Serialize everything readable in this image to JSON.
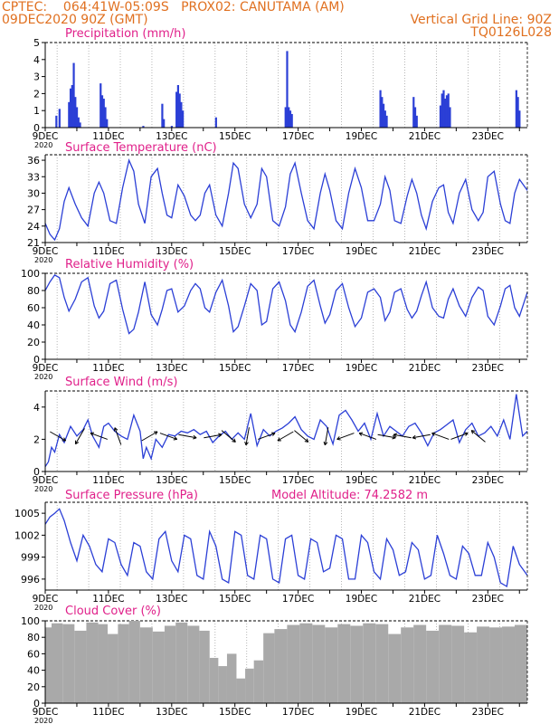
{
  "header": {
    "line1": "CPTEC:    064:41W-05:09S   PROX02: CANUTAMA (AM)",
    "line2": "09DEC2020 90Z (GMT)",
    "right1": "Vertical Grid Line: 90Z",
    "right2": "TQ0126L028"
  },
  "colors": {
    "header": "#e07020",
    "panel_title": "#e0208a",
    "series": "#2b3fd6",
    "cloud": "#a9a9a9",
    "grid": "#888888"
  },
  "x_tick_labels": [
    "9DEC",
    "11DEC",
    "13DEC",
    "15DEC",
    "17DEC",
    "19DEC",
    "21DEC",
    "23DEC"
  ],
  "x_year_label": "2020",
  "chart_data": [
    {
      "type": "bar",
      "title": "Precipitation (mm/h)",
      "ylim": [
        0,
        5
      ],
      "yticks": [
        0,
        1,
        2,
        3,
        4,
        5
      ],
      "xlim": [
        9.0,
        24.25
      ],
      "x": [
        9.35,
        9.45,
        9.75,
        9.8,
        9.85,
        9.9,
        9.95,
        10.0,
        10.05,
        10.1,
        10.75,
        10.8,
        10.85,
        10.9,
        10.95,
        12.1,
        12.7,
        12.75,
        13.0,
        13.15,
        13.2,
        13.25,
        13.3,
        13.35,
        14.4,
        16.6,
        16.65,
        16.7,
        16.75,
        16.8,
        19.6,
        19.65,
        19.7,
        19.75,
        19.8,
        20.65,
        20.7,
        20.75,
        21.5,
        21.55,
        21.6,
        21.65,
        21.7,
        21.75,
        21.8,
        23.9,
        23.95,
        24.0
      ],
      "values": [
        0.7,
        1.1,
        1.5,
        2.3,
        2.5,
        3.8,
        1.8,
        1.2,
        0.6,
        0.3,
        2.6,
        1.9,
        1.7,
        1.2,
        0.5,
        0.1,
        1.4,
        0.5,
        0.1,
        2.1,
        2.5,
        2.0,
        1.5,
        1.0,
        0.6,
        1.2,
        4.5,
        1.2,
        1.0,
        0.8,
        2.2,
        1.8,
        1.4,
        1.0,
        0.7,
        1.8,
        1.2,
        0.7,
        1.3,
        2.0,
        2.2,
        1.7,
        1.9,
        2.0,
        1.2,
        2.2,
        1.8,
        1.0
      ]
    },
    {
      "type": "line",
      "title": "Surface Temperature (nC)",
      "ylim": [
        21,
        37
      ],
      "yticks": [
        21,
        24,
        27,
        30,
        33,
        36
      ],
      "xlim": [
        9.0,
        24.25
      ],
      "x": [
        9.0,
        9.15,
        9.3,
        9.45,
        9.6,
        9.75,
        9.95,
        10.15,
        10.35,
        10.55,
        10.7,
        10.85,
        11.05,
        11.25,
        11.45,
        11.65,
        11.8,
        11.95,
        12.15,
        12.35,
        12.55,
        12.7,
        12.85,
        13.0,
        13.2,
        13.4,
        13.6,
        13.75,
        13.9,
        14.05,
        14.2,
        14.4,
        14.6,
        14.8,
        14.95,
        15.1,
        15.3,
        15.5,
        15.7,
        15.85,
        16.0,
        16.2,
        16.4,
        16.6,
        16.75,
        16.9,
        17.1,
        17.3,
        17.5,
        17.7,
        17.85,
        18.0,
        18.2,
        18.4,
        18.6,
        18.8,
        19.0,
        19.2,
        19.4,
        19.6,
        19.75,
        19.9,
        20.05,
        20.25,
        20.45,
        20.6,
        20.75,
        20.9,
        21.05,
        21.25,
        21.45,
        21.6,
        21.75,
        21.9,
        22.1,
        22.3,
        22.5,
        22.7,
        22.85,
        23.0,
        23.2,
        23.4,
        23.55,
        23.7,
        23.85,
        24.0,
        24.25
      ],
      "values": [
        24.5,
        22.5,
        21.5,
        23.5,
        28.5,
        31.0,
        28.0,
        25.5,
        24.0,
        30.0,
        32.0,
        30.0,
        25.0,
        24.5,
        31.0,
        36.0,
        34.0,
        28.0,
        24.5,
        33.0,
        34.5,
        30.0,
        26.0,
        25.5,
        31.5,
        29.5,
        26.0,
        25.0,
        26.0,
        30.0,
        31.5,
        26.0,
        24.0,
        30.0,
        35.5,
        34.5,
        28.0,
        25.5,
        28.0,
        34.5,
        33.0,
        25.0,
        24.0,
        27.5,
        33.5,
        35.5,
        30.0,
        25.0,
        23.5,
        30.0,
        33.5,
        30.5,
        25.0,
        23.5,
        30.0,
        34.5,
        31.0,
        25.0,
        25.0,
        28.0,
        33.0,
        30.5,
        25.0,
        24.5,
        29.5,
        32.5,
        30.0,
        26.0,
        23.5,
        28.5,
        31.0,
        31.5,
        26.5,
        24.5,
        30.0,
        32.5,
        27.0,
        25.0,
        26.5,
        33.0,
        34.0,
        28.0,
        25.0,
        24.5,
        30.0,
        32.5,
        30.5
      ]
    },
    {
      "type": "line",
      "title": "Relative Humidity (%)",
      "ylim": [
        0,
        100
      ],
      "yticks": [
        0,
        20,
        40,
        60,
        80,
        100
      ],
      "xlim": [
        9.0,
        24.25
      ],
      "x": [
        9.0,
        9.15,
        9.3,
        9.45,
        9.6,
        9.75,
        9.95,
        10.15,
        10.35,
        10.55,
        10.7,
        10.85,
        11.05,
        11.25,
        11.45,
        11.65,
        11.8,
        11.95,
        12.15,
        12.35,
        12.55,
        12.7,
        12.85,
        13.0,
        13.2,
        13.4,
        13.6,
        13.75,
        13.9,
        14.05,
        14.2,
        14.4,
        14.6,
        14.8,
        14.95,
        15.1,
        15.3,
        15.5,
        15.7,
        15.85,
        16.0,
        16.2,
        16.4,
        16.6,
        16.75,
        16.9,
        17.1,
        17.3,
        17.5,
        17.7,
        17.85,
        18.0,
        18.2,
        18.4,
        18.6,
        18.8,
        19.0,
        19.2,
        19.4,
        19.6,
        19.75,
        19.9,
        20.05,
        20.25,
        20.45,
        20.6,
        20.75,
        20.9,
        21.05,
        21.25,
        21.45,
        21.6,
        21.75,
        21.9,
        22.1,
        22.3,
        22.5,
        22.7,
        22.85,
        23.0,
        23.2,
        23.4,
        23.55,
        23.7,
        23.85,
        24.0,
        24.25
      ],
      "values": [
        80,
        90,
        98,
        95,
        72,
        56,
        70,
        90,
        95,
        62,
        48,
        56,
        88,
        92,
        58,
        30,
        35,
        55,
        90,
        52,
        40,
        58,
        80,
        82,
        55,
        62,
        80,
        88,
        82,
        60,
        55,
        78,
        92,
        62,
        32,
        38,
        62,
        88,
        80,
        40,
        44,
        82,
        90,
        68,
        40,
        32,
        55,
        85,
        92,
        62,
        42,
        52,
        80,
        88,
        60,
        38,
        48,
        78,
        82,
        72,
        45,
        55,
        78,
        82,
        58,
        48,
        56,
        74,
        90,
        60,
        50,
        48,
        70,
        82,
        62,
        50,
        72,
        84,
        80,
        50,
        40,
        62,
        82,
        86,
        60,
        50,
        78
      ]
    },
    {
      "type": "line",
      "title": "Surface Wind (m/s)",
      "ylim": [
        0,
        5
      ],
      "yticks": [
        0,
        2,
        4
      ],
      "xlim": [
        9.0,
        24.25
      ],
      "x": [
        9.0,
        9.1,
        9.2,
        9.3,
        9.45,
        9.6,
        9.8,
        10.0,
        10.2,
        10.35,
        10.5,
        10.7,
        10.85,
        11.0,
        11.2,
        11.4,
        11.6,
        11.8,
        12.0,
        12.1,
        12.2,
        12.35,
        12.5,
        12.7,
        12.9,
        13.1,
        13.3,
        13.5,
        13.7,
        13.9,
        14.1,
        14.3,
        14.5,
        14.7,
        14.9,
        15.1,
        15.3,
        15.5,
        15.7,
        15.9,
        16.1,
        16.3,
        16.5,
        16.7,
        16.9,
        17.1,
        17.3,
        17.5,
        17.7,
        17.9,
        18.1,
        18.3,
        18.5,
        18.7,
        18.9,
        19.1,
        19.3,
        19.5,
        19.7,
        19.9,
        20.1,
        20.3,
        20.5,
        20.7,
        20.9,
        21.1,
        21.3,
        21.5,
        21.7,
        21.9,
        22.1,
        22.3,
        22.5,
        22.7,
        22.9,
        23.1,
        23.3,
        23.5,
        23.7,
        23.9,
        24.1,
        24.25
      ],
      "values": [
        0.3,
        0.6,
        1.5,
        1.2,
        2.3,
        1.8,
        2.8,
        2.2,
        2.6,
        3.2,
        2.2,
        1.5,
        2.8,
        3.0,
        2.5,
        2.2,
        2.0,
        3.5,
        2.5,
        0.8,
        1.5,
        0.8,
        2.0,
        1.5,
        2.3,
        2.2,
        2.5,
        2.4,
        2.6,
        2.3,
        2.5,
        1.8,
        2.2,
        2.5,
        2.0,
        2.4,
        2.0,
        3.6,
        1.6,
        2.6,
        2.2,
        2.5,
        2.7,
        3.0,
        3.4,
        2.6,
        2.2,
        2.0,
        3.2,
        2.8,
        1.7,
        3.5,
        3.8,
        3.2,
        2.5,
        3.0,
        2.0,
        3.6,
        2.2,
        2.8,
        2.5,
        2.2,
        2.8,
        3.0,
        2.4,
        1.6,
        2.4,
        2.6,
        2.9,
        3.2,
        1.8,
        2.6,
        3.0,
        2.2,
        2.4,
        2.8,
        2.2,
        3.2,
        2.0,
        4.8,
        2.2,
        2.5
      ]
    },
    {
      "type": "line",
      "title": "Surface Pressure (hPa)",
      "annotation": "Model Altitude: 74.2582 m",
      "ylim": [
        994.5,
        1006.5
      ],
      "yticks": [
        996,
        999,
        1002,
        1005
      ],
      "xlim": [
        9.0,
        24.25
      ],
      "x": [
        9.0,
        9.15,
        9.3,
        9.45,
        9.6,
        9.8,
        10.0,
        10.2,
        10.4,
        10.6,
        10.8,
        11.0,
        11.2,
        11.4,
        11.6,
        11.8,
        12.0,
        12.2,
        12.4,
        12.6,
        12.8,
        13.0,
        13.2,
        13.4,
        13.6,
        13.8,
        14.0,
        14.2,
        14.4,
        14.6,
        14.8,
        15.0,
        15.2,
        15.4,
        15.6,
        15.8,
        16.0,
        16.2,
        16.4,
        16.6,
        16.8,
        17.0,
        17.2,
        17.4,
        17.6,
        17.8,
        18.0,
        18.2,
        18.4,
        18.6,
        18.8,
        19.0,
        19.2,
        19.4,
        19.6,
        19.8,
        20.0,
        20.2,
        20.4,
        20.6,
        20.8,
        21.0,
        21.2,
        21.4,
        21.6,
        21.8,
        22.0,
        22.2,
        22.4,
        22.6,
        22.8,
        23.0,
        23.2,
        23.4,
        23.6,
        23.8,
        24.0,
        24.25
      ],
      "values": [
        1003.5,
        1004.5,
        1005.0,
        1005.6,
        1004.0,
        1001.0,
        998.5,
        1002.0,
        1000.5,
        998.0,
        997.0,
        1001.5,
        1001.0,
        998.0,
        996.5,
        1001.0,
        1000.5,
        997.0,
        996.0,
        1001.5,
        1002.5,
        998.5,
        997.0,
        1002.0,
        1001.5,
        996.5,
        996.0,
        1002.5,
        1000.5,
        996.0,
        995.5,
        1002.5,
        1002.0,
        996.5,
        996.0,
        1002.0,
        1001.5,
        996.0,
        995.5,
        1001.5,
        1002.0,
        996.5,
        996.0,
        1001.5,
        1001.0,
        997.0,
        997.5,
        1002.0,
        1001.5,
        996.0,
        996.0,
        1002.0,
        1001.0,
        997.0,
        996.0,
        1001.5,
        1000.0,
        996.5,
        997.0,
        1001.0,
        1000.0,
        996.0,
        996.5,
        1002.0,
        999.5,
        996.5,
        996.0,
        1000.5,
        999.5,
        996.5,
        996.5,
        1001.0,
        999.0,
        995.5,
        995.0,
        1000.5,
        998.0,
        996.5
      ]
    },
    {
      "type": "bar",
      "title": "Cloud Cover (%)",
      "ylim": [
        0,
        100
      ],
      "yticks": [
        0,
        20,
        40,
        60,
        80,
        100
      ],
      "xlim": [
        9.0,
        24.25
      ],
      "x": [
        9.05,
        9.35,
        9.75,
        10.1,
        10.5,
        10.85,
        11.1,
        11.5,
        11.8,
        12.2,
        12.6,
        12.95,
        13.3,
        13.7,
        14.05,
        14.35,
        14.6,
        14.9,
        15.2,
        15.45,
        15.75,
        16.05,
        16.45,
        16.85,
        17.25,
        17.65,
        18.05,
        18.45,
        18.85,
        19.25,
        19.65,
        20.05,
        20.45,
        20.85,
        21.25,
        21.65,
        22.05,
        22.45,
        22.85,
        23.25,
        23.65,
        24.05
      ],
      "values": [
        92,
        97,
        96,
        88,
        98,
        96,
        84,
        96,
        100,
        92,
        87,
        94,
        98,
        94,
        88,
        55,
        45,
        60,
        30,
        42,
        52,
        85,
        90,
        95,
        97,
        95,
        92,
        96,
        94,
        97,
        96,
        84,
        92,
        95,
        88,
        95,
        94,
        86,
        93,
        92,
        93,
        95
      ]
    }
  ]
}
